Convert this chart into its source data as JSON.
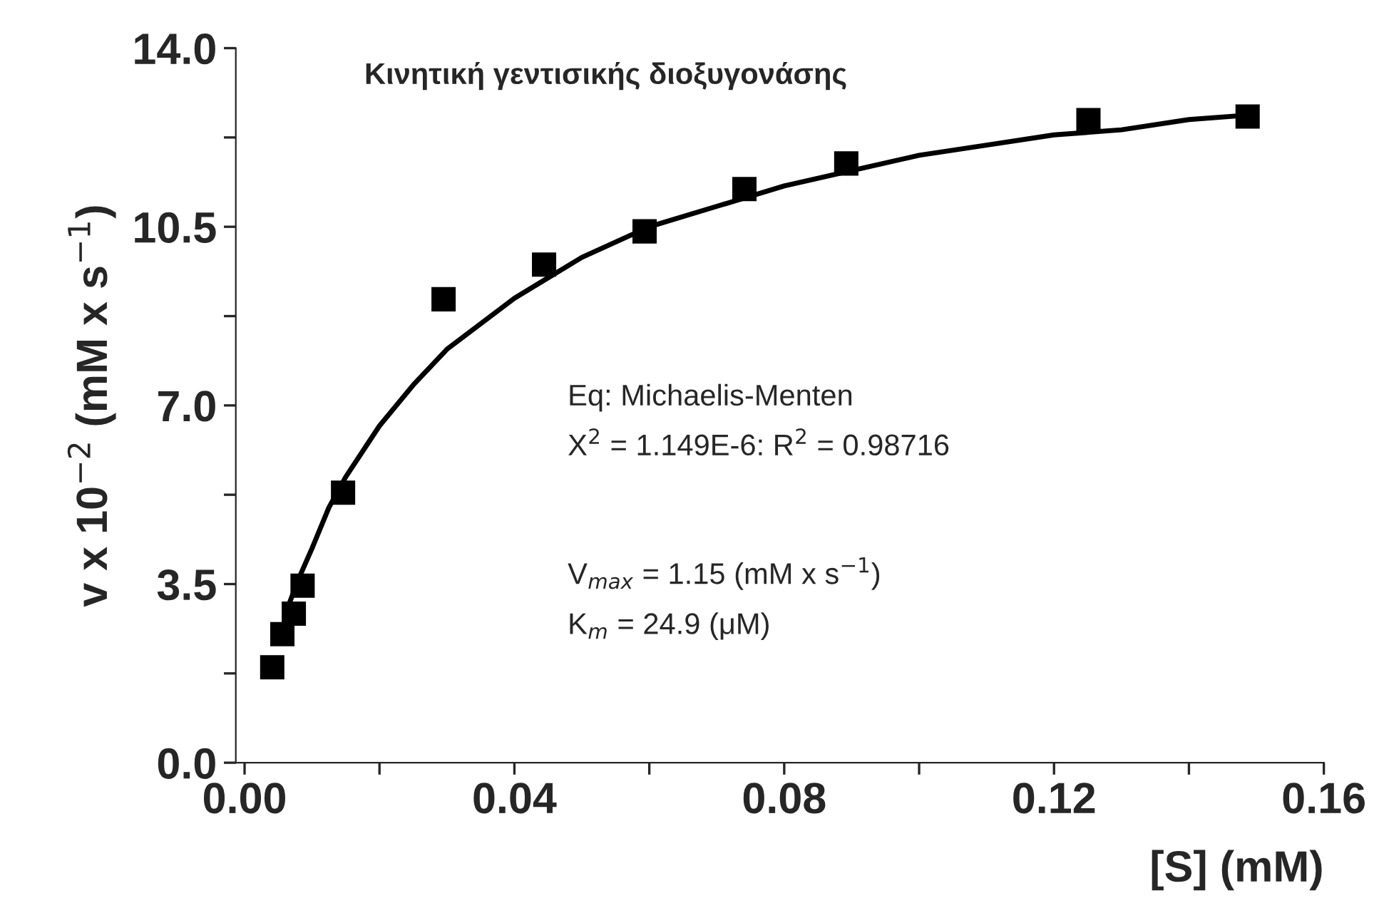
{
  "chart_data": {
    "type": "scatter",
    "title": "Κινητική γεντισικής διοξυγονάσης",
    "xlabel": "[S] (mM)",
    "ylabel": "v x 10$^{−2}$ (mM x s$^{−1}$)",
    "annotations": [
      "Eq: Michaelis-Menten",
      "X$^{2}$ = 1.149E-6: R$^{2}$ = 0.98716",
      "V$_{max}$ = 1.15 (mM x s$^{−1}$)",
      "K$_{m}$ = 24.9 (μM)"
    ],
    "series": [
      {
        "color": "#000000",
        "marker": "square",
        "x": [
          0.0041,
          0.0056,
          0.0073,
          0.0086,
          0.0146,
          0.0295,
          0.0444,
          0.0593,
          0.0741,
          0.0892,
          0.1251,
          0.1487
        ],
        "values": [
          1.87,
          2.52,
          2.92,
          3.47,
          5.29,
          9.08,
          9.76,
          10.41,
          11.24,
          11.74,
          12.59,
          12.66
        ]
      },
      {
        "type": "line",
        "color": "#000000",
        "line_style": "solid",
        "x": [
          0.006,
          0.008,
          0.01,
          0.0125,
          0.015,
          0.02,
          0.025,
          0.03,
          0.04,
          0.05,
          0.06,
          0.07,
          0.08,
          0.09,
          0.1,
          0.11,
          0.12,
          0.13,
          0.14,
          0.15
        ],
        "values": [
          2.9,
          3.6,
          4.2,
          5.0,
          5.6,
          6.6,
          7.4,
          8.1,
          9.1,
          9.9,
          10.5,
          10.9,
          11.3,
          11.6,
          11.9,
          12.1,
          12.3,
          12.4,
          12.6,
          12.7
        ]
      }
    ],
    "xlim": [
      -0.0013,
      0.16
    ],
    "ylim": [
      0,
      14
    ],
    "xticks": [
      {
        "value": 0,
        "label": "0.00"
      },
      {
        "value": 0.02,
        "label": null
      },
      {
        "value": 0.04,
        "label": "0.04"
      },
      {
        "value": 0.06,
        "label": null
      },
      {
        "value": 0.08,
        "label": "0.08"
      },
      {
        "value": 0.1,
        "label": null
      },
      {
        "value": 0.12,
        "label": "0.12"
      },
      {
        "value": 0.14,
        "label": null
      },
      {
        "value": 0.16,
        "label": "0.16"
      }
    ],
    "yticks": [
      {
        "value": 0,
        "label": "0.0"
      },
      {
        "value": 1.75,
        "label": null
      },
      {
        "value": 3.5,
        "label": "3.5"
      },
      {
        "value": 5.25,
        "label": null
      },
      {
        "value": 7,
        "label": "7.0"
      },
      {
        "value": 8.75,
        "label": null
      },
      {
        "value": 10.5,
        "label": "10.5"
      },
      {
        "value": 12.25,
        "label": null
      },
      {
        "value": 14,
        "label": "14.0"
      }
    ],
    "grid": false,
    "legend": false
  }
}
